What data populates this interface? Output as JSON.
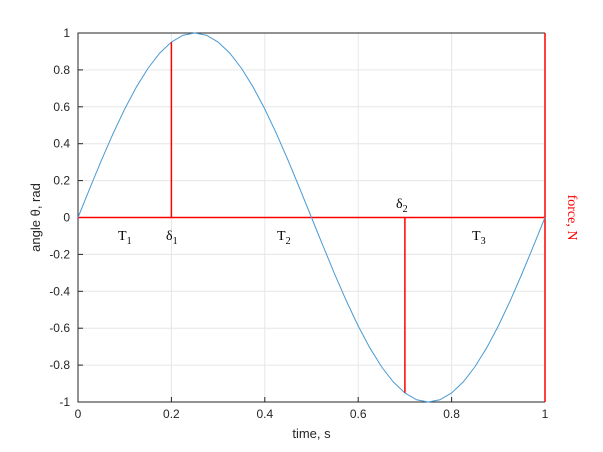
{
  "chart_data": {
    "type": "line",
    "xlabel": "time, s",
    "ylabel": "angle θ, rad",
    "y2label": "force, N",
    "y2color": "#ff0000",
    "xlim": [
      0,
      1
    ],
    "ylim": [
      -1,
      1
    ],
    "xticks": [
      0,
      0.2,
      0.4,
      0.6,
      0.8,
      1
    ],
    "yticks": [
      -1,
      -0.8,
      -0.6,
      -0.4,
      -0.2,
      0,
      0.2,
      0.4,
      0.6,
      0.8,
      1
    ],
    "grid": true,
    "curve": {
      "color": "#4a9ad4",
      "x": [
        0,
        0.025,
        0.05,
        0.075,
        0.1,
        0.125,
        0.15,
        0.175,
        0.2,
        0.225,
        0.25,
        0.275,
        0.3,
        0.325,
        0.35,
        0.375,
        0.4,
        0.425,
        0.45,
        0.475,
        0.5,
        0.525,
        0.55,
        0.575,
        0.6,
        0.625,
        0.65,
        0.675,
        0.7,
        0.725,
        0.75,
        0.775,
        0.8,
        0.825,
        0.85,
        0.875,
        0.9,
        0.925,
        0.95,
        0.975,
        1
      ],
      "values": [
        0,
        0.156,
        0.309,
        0.454,
        0.588,
        0.707,
        0.809,
        0.891,
        0.951,
        0.988,
        1,
        0.988,
        0.951,
        0.891,
        0.809,
        0.707,
        0.588,
        0.454,
        0.309,
        0.156,
        0,
        -0.156,
        -0.309,
        -0.454,
        -0.588,
        -0.707,
        -0.809,
        -0.891,
        -0.951,
        -0.988,
        -1,
        -0.988,
        -0.951,
        -0.891,
        -0.809,
        -0.707,
        -0.588,
        -0.454,
        -0.309,
        -0.156,
        0
      ]
    },
    "impulses": {
      "color": "#ff0000",
      "x": [
        0.2,
        0.7
      ],
      "values": [
        0.95,
        -0.95
      ]
    },
    "annotations": [
      {
        "text": "T",
        "sub": "1"
      },
      {
        "text": "δ",
        "sub": "1"
      },
      {
        "text": "T",
        "sub": "2"
      },
      {
        "text": "δ",
        "sub": "2"
      },
      {
        "text": "T",
        "sub": "3"
      }
    ]
  }
}
